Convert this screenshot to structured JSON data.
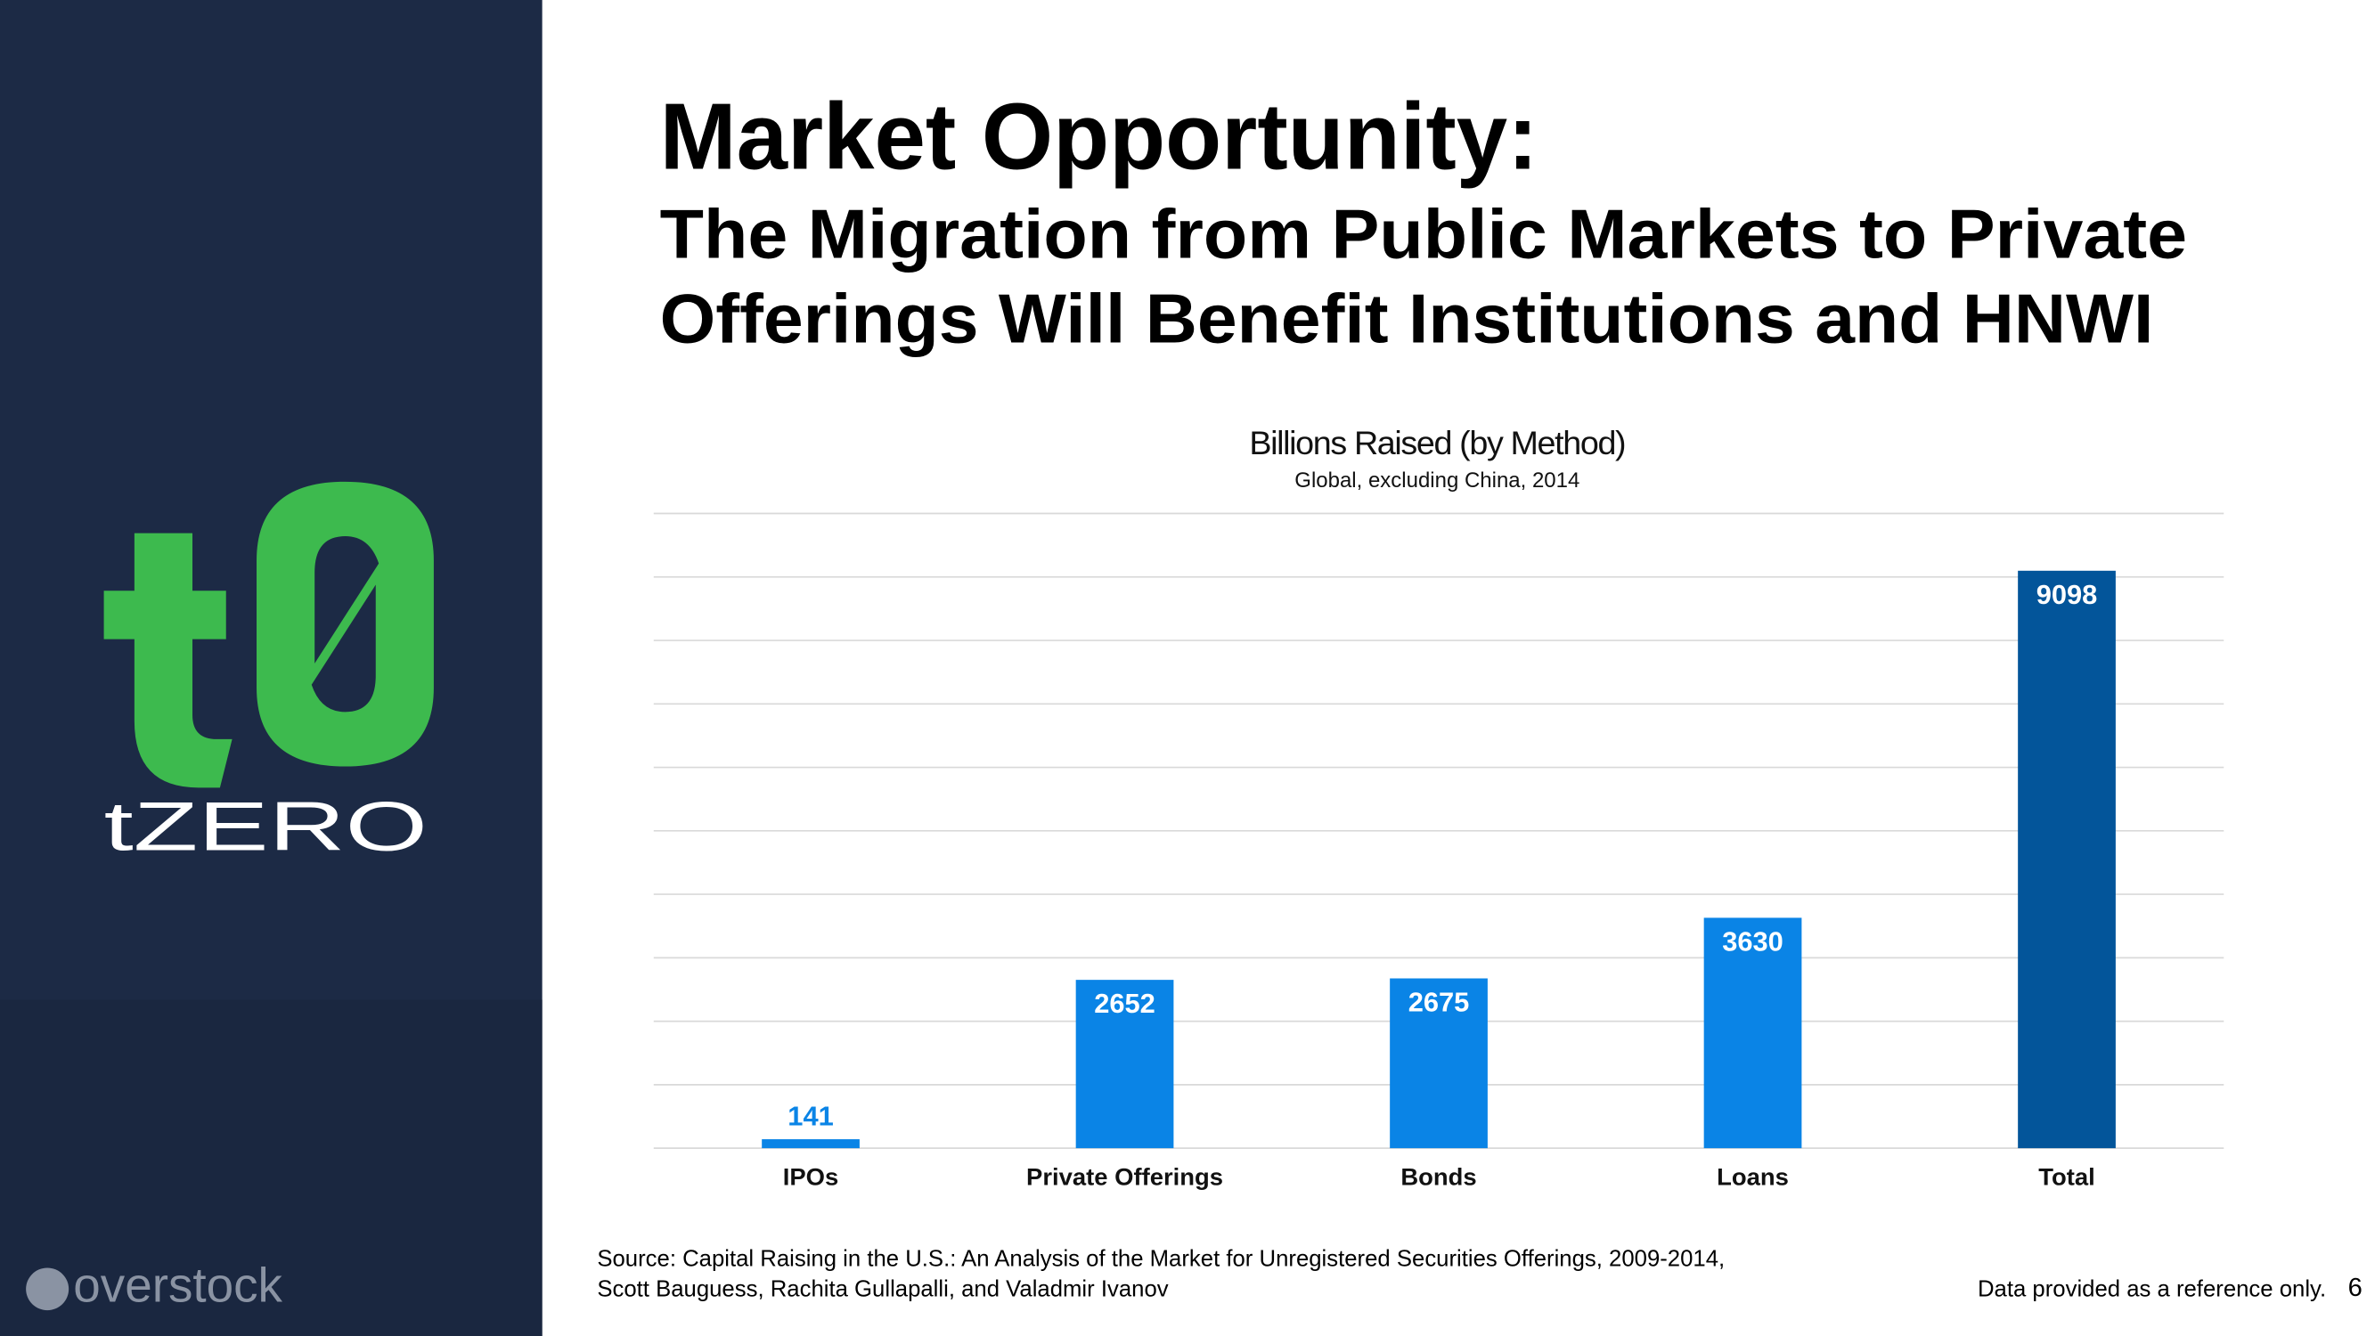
{
  "sidebar": {
    "brand": "tZERO",
    "partner": "overstock"
  },
  "header": {
    "title": "Market Opportunity:",
    "subtitle_lines": [
      "The Migration from Public Markets to Private",
      "Offerings Will Benefit Institutions and HNWI"
    ]
  },
  "chart_data": {
    "type": "bar",
    "title": "Billions Raised (by Method)",
    "subtitle": "Global, excluding China, 2014",
    "categories": [
      "IPOs",
      "Private Offerings",
      "Bonds",
      "Loans",
      "Total"
    ],
    "values": [
      141,
      2652,
      2675,
      3630,
      9098
    ],
    "colors": [
      "#0a84e6",
      "#0a84e6",
      "#0a84e6",
      "#0a84e6",
      "#03559a"
    ],
    "ylim": [
      0,
      10000
    ],
    "yticks": [
      0,
      1000,
      2000,
      3000,
      4000,
      5000,
      6000,
      7000,
      8000,
      9000,
      10000
    ],
    "grid": true
  },
  "footer": {
    "source_lines": [
      "Source: Capital Raising in the U.S.: An Analysis of the Market for Unregistered Securities Offerings, 2009-2014,",
      "Scott Bauguess, Rachita Gullapalli, and Valadmir Ivanov"
    ],
    "note": "Data provided as a reference only.",
    "page": "6"
  }
}
